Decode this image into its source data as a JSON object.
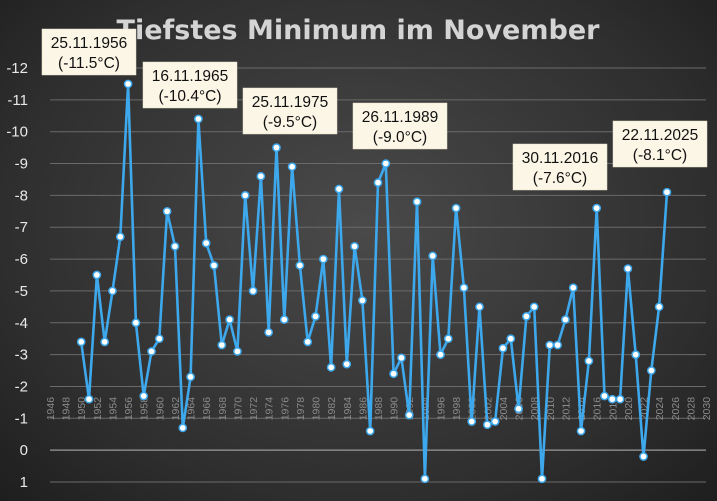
{
  "chart_data": {
    "type": "line",
    "title": "Tiefstes Minimum im November",
    "xlabel": "",
    "ylabel": "",
    "xlim": [
      1946,
      2030
    ],
    "ylim": [
      1,
      -12
    ],
    "x_ticks": [
      1946,
      1948,
      1950,
      1952,
      1954,
      1956,
      1958,
      1960,
      1962,
      1964,
      1966,
      1968,
      1970,
      1972,
      1974,
      1976,
      1978,
      1980,
      1982,
      1984,
      1986,
      1988,
      1990,
      1992,
      1994,
      1996,
      1998,
      2000,
      2002,
      2004,
      2006,
      2008,
      2010,
      2012,
      2014,
      2016,
      2018,
      2020,
      2022,
      2024,
      2026,
      2028,
      2030
    ],
    "y_ticks": [
      1,
      0,
      -1,
      -2,
      -3,
      -4,
      -5,
      -6,
      -7,
      -8,
      -9,
      -10,
      -11,
      -12
    ],
    "grid": true,
    "series": [
      {
        "color": "#3ea8ec",
        "x": [
          1950,
          1951,
          1952,
          1953,
          1954,
          1955,
          1956,
          1957,
          1958,
          1959,
          1960,
          1961,
          1962,
          1963,
          1964,
          1965,
          1966,
          1967,
          1968,
          1969,
          1970,
          1971,
          1972,
          1973,
          1974,
          1975,
          1976,
          1977,
          1978,
          1979,
          1980,
          1981,
          1982,
          1983,
          1984,
          1985,
          1986,
          1987,
          1988,
          1989,
          1990,
          1991,
          1992,
          1993,
          1994,
          1995,
          1996,
          1997,
          1998,
          1999,
          2000,
          2001,
          2002,
          2003,
          2004,
          2005,
          2006,
          2007,
          2008,
          2009,
          2010,
          2011,
          2012,
          2013,
          2014,
          2015,
          2016,
          2017,
          2018,
          2019,
          2020,
          2021,
          2022,
          2023,
          2024,
          2025
        ],
        "values": [
          -3.4,
          -1.6,
          -5.5,
          -3.4,
          -5.0,
          -6.7,
          -11.5,
          -4.0,
          -1.7,
          -3.1,
          -3.5,
          -7.5,
          -6.4,
          -0.7,
          -2.3,
          -10.4,
          -6.5,
          -5.8,
          -3.3,
          -4.1,
          -3.1,
          -8.0,
          -5.0,
          -8.6,
          -3.7,
          -9.5,
          -4.1,
          -8.9,
          -5.8,
          -3.4,
          -4.2,
          -6.0,
          -2.6,
          -8.2,
          -2.7,
          -6.4,
          -4.7,
          -0.6,
          -8.4,
          -9.0,
          -2.4,
          -2.9,
          -1.1,
          -7.8,
          0.9,
          -6.1,
          -3.0,
          -3.5,
          -7.6,
          -5.1,
          -0.9,
          -4.5,
          -0.8,
          -0.9,
          -3.2,
          -3.5,
          -1.3,
          -4.2,
          -4.5,
          0.9,
          -3.3,
          -3.3,
          -4.1,
          -5.1,
          -0.6,
          -2.8,
          -7.6,
          -1.7,
          -1.6,
          -1.6,
          -5.7,
          -3.0,
          0.2,
          -2.5,
          -4.5,
          -8.1
        ]
      }
    ],
    "annotations": [
      {
        "date": "25.11.1956",
        "value": "(-11.5°C)"
      },
      {
        "date": "16.11.1965",
        "value": "(-10.4°C)"
      },
      {
        "date": "25.11.1975",
        "value": "(-9.5°C)"
      },
      {
        "date": "26.11.1989",
        "value": "(-9.0°C)"
      },
      {
        "date": "30.11.2016",
        "value": "(-7.6°C)"
      },
      {
        "date": "22.11.2025",
        "value": "(-8.1°C)"
      }
    ]
  }
}
